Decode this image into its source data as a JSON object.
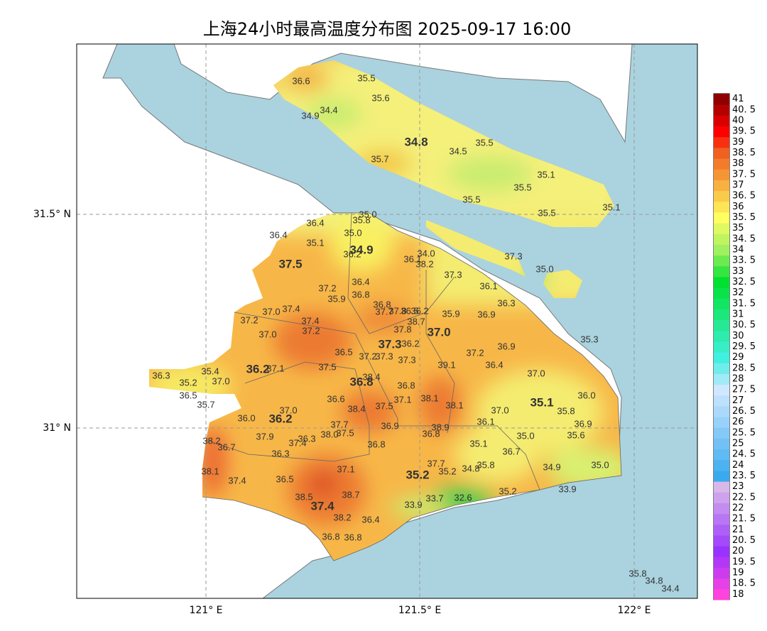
{
  "title": "上海24小时最高温度分布图 2025-09-17 16:00",
  "axes": {
    "x_ticks": [
      "121° E",
      "121.5° E",
      "122° E"
    ],
    "y_ticks": [
      "31.5° N",
      "31° N"
    ]
  },
  "colorbar": {
    "labels": [
      "18",
      "18. 5",
      "19",
      "19. 5",
      "20",
      "20. 5",
      "21",
      "21. 5",
      "22",
      "22. 5",
      "23",
      "23. 5",
      "24",
      "24. 5",
      "25",
      "25. 5",
      "26",
      "26. 5",
      "27",
      "27. 5",
      "28",
      "28. 5",
      "29",
      "29. 5",
      "30",
      "30. 5",
      "31",
      "31. 5",
      "32",
      "32. 5",
      "33",
      "33. 5",
      "34",
      "34. 5",
      "35",
      "35. 5",
      "36",
      "36. 5",
      "37",
      "37. 5",
      "38",
      "38. 5",
      "39",
      "39. 5",
      "40",
      "40. 5",
      "41"
    ]
  },
  "stations": [
    "36.6",
    "35.5",
    "35.6",
    "34.4",
    "34.9",
    "34.8",
    "34.5",
    "35.5",
    "35.7",
    "35.1",
    "35.5",
    "35.5",
    "35.5",
    "35.1",
    "37.3",
    "35.0",
    "35.0",
    "35.8",
    "36.4",
    "36.4",
    "35.1",
    "35.0",
    "34.9",
    "36.2",
    "37.5",
    "36.1",
    "34.0",
    "38.2",
    "37.3",
    "36.4",
    "37.2",
    "36.8",
    "35.9",
    "36.1",
    "36.3",
    "36.8",
    "37.0",
    "37.4",
    "37.7",
    "37.8",
    "36.5",
    "36.2",
    "35.9",
    "36.9",
    "37.2",
    "37.4",
    "38.7",
    "37.8",
    "37.2",
    "37.0",
    "37.0",
    "35.3",
    "37.3",
    "36.2",
    "36.9",
    "36.5",
    "37.2",
    "37.3",
    "37.2",
    "37.3",
    "36.4",
    "39.1",
    "36.2",
    "37.1",
    "37.5",
    "36.3",
    "35.4",
    "37.0",
    "36.8",
    "38.4",
    "35.2",
    "37.0",
    "36.8",
    "36.5",
    "36.0",
    "36.6",
    "37.1",
    "38.1",
    "35.1",
    "35.7",
    "38.1",
    "37.5",
    "38.4",
    "37.0",
    "37.0",
    "35.8",
    "36.2",
    "36.0",
    "36.1",
    "36.9",
    "37.7",
    "38.9",
    "36.9",
    "38.0",
    "37.5",
    "36.8",
    "35.0",
    "35.6",
    "37.9",
    "38.2",
    "36.3",
    "37.4",
    "36.7",
    "36.8",
    "35.1",
    "36.7",
    "36.3",
    "37.7",
    "35.8",
    "34.8",
    "35.2",
    "35.2",
    "37.1",
    "34.9",
    "35.0",
    "38.1",
    "36.5",
    "37.4",
    "38.5",
    "38.7",
    "35.2",
    "33.9",
    "33.7",
    "32.6",
    "37.4",
    "33.9",
    "38.2",
    "36.4",
    "36.8",
    "36.8",
    "35.8",
    "34.8",
    "34.4"
  ]
}
